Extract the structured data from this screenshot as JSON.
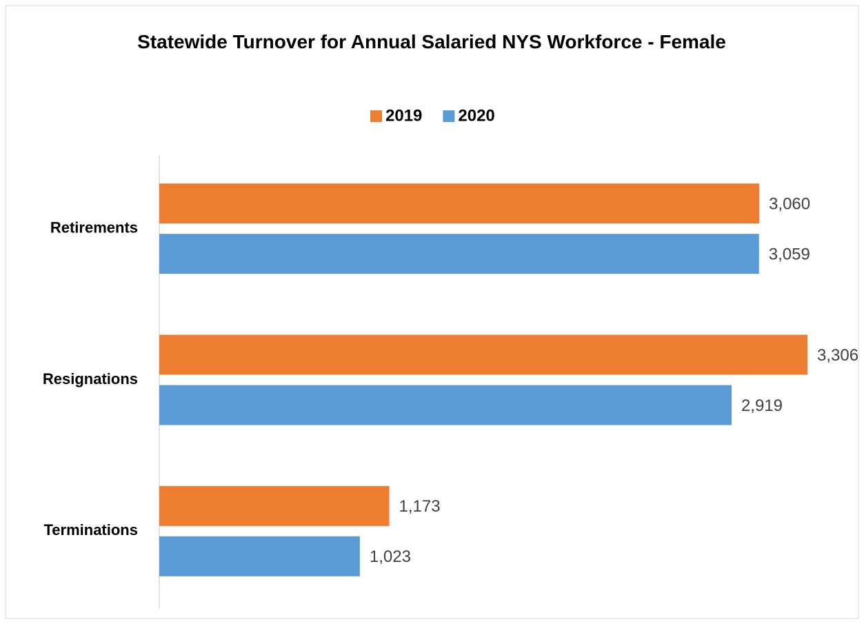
{
  "chart_data": {
    "type": "hbar",
    "title": "Statewide Turnover for Annual Salaried NYS Workforce - Female",
    "categories": [
      "Retirements",
      "Resignations",
      "Terminations"
    ],
    "series": [
      {
        "name": "2019",
        "color": "#ed7d31",
        "values": [
          3060,
          3306,
          1173
        ],
        "value_labels": [
          "3,060",
          "3,306",
          "1,173"
        ]
      },
      {
        "name": "2020",
        "color": "#5b9bd5",
        "values": [
          3059,
          2919,
          1023
        ],
        "value_labels": [
          "3,059",
          "2,919",
          "1,023"
        ]
      }
    ],
    "legend": "top"
  }
}
